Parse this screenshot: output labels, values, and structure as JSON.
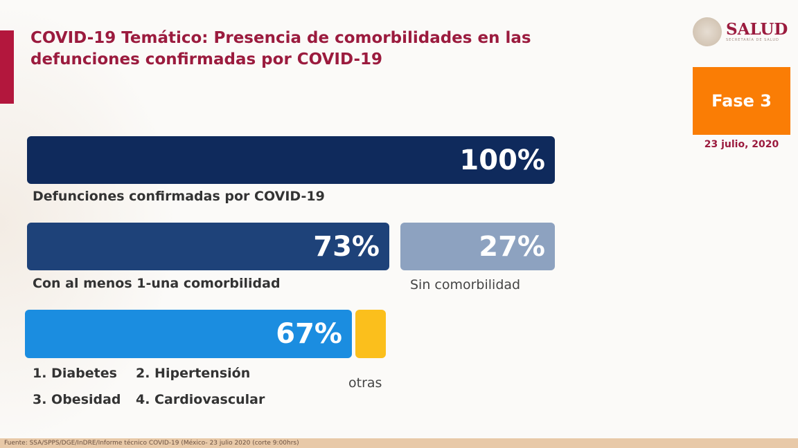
{
  "title": "COVID-19 Temático: Presencia de comorbilidades en las defunciones confirmadas por COVID-19",
  "logo": {
    "name": "SALUD",
    "subtitle": "SECRETARÍA DE SALUD"
  },
  "phase": "Fase 3",
  "date": "23 julio, 2020",
  "bars": [
    {
      "value": "100%",
      "label": "Defunciones confirmadas por COVID-19",
      "color": "#0f2a5c"
    },
    {
      "value": "73%",
      "label": "Con al menos 1-una comorbilidad",
      "color": "#1e4279"
    },
    {
      "value": "27%",
      "label": "Sin comorbilidad",
      "color": "#8da2c0"
    },
    {
      "value": "67%",
      "color": "#1b8de0"
    },
    {
      "label": "otras",
      "color": "#fbbf1c"
    }
  ],
  "comorbidities": [
    "1. Diabetes",
    "2. Hipertensión",
    "3. Obesidad",
    "4. Cardiovascular"
  ],
  "footer": "Fuente: SSA/SPPS/DGE/InDRE/Informe técnico COVID-19 (México- 23 julio 2020 (corte 9:00hrs)"
}
